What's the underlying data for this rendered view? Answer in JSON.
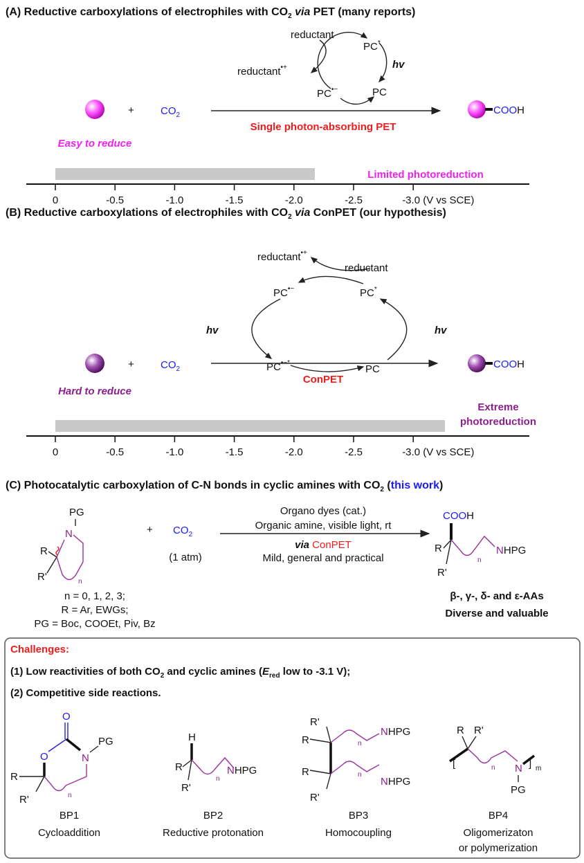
{
  "colors": {
    "magenta": "#ee22ee",
    "purple": "#8b1f8b",
    "red": "#ee1c1c",
    "blue": "#1a1aff",
    "bar": "#c8c8c8"
  },
  "panelA": {
    "title_pre": "(A) Reductive carboxylations of electrophiles with CO",
    "title_sub": "2",
    "title_via": "via",
    "title_post": " PET (many reports)",
    "cycle": {
      "reductant": "reductant",
      "reductant_ox": "reductant",
      "reductant_ox_sup": "•+",
      "pc_star": "PC",
      "pc_star_sup": "*",
      "hv": "hv",
      "pc_rad": "PC",
      "pc_rad_sup": "•−",
      "pc": "PC"
    },
    "plus": "+",
    "co2": "CO",
    "co2_sub": "2",
    "arrow_label": "Single photon-absorbing PET",
    "substrate_label": "Easy to reduce",
    "product_cooh": "COO",
    "product_h": "H",
    "bar_label": "Limited photoreduction",
    "bar_fraction_of_axis": 0.64,
    "axis_ticks": [
      "0",
      "-0.5",
      "-1.0",
      "-1.5",
      "-2.0",
      "-2.5",
      "-3.0 (V vs SCE)"
    ],
    "bar_end_potential": -2.2
  },
  "panelB": {
    "title_pre": "(B) Reductive carboxylations of electrophiles with CO",
    "title_sub": "2",
    "title_via": "via",
    "title_post": " ConPET (our hypothesis)",
    "cycle": {
      "reductant_ox": "reductant",
      "reductant_ox_sup": "•+",
      "reductant": "reductant",
      "pc_rad": "PC",
      "pc_rad_sup": "•−",
      "pc_star": "PC",
      "pc_star_sup": "*",
      "hv_left": "hv",
      "hv_right": "hv",
      "pc_rad_star": "PC",
      "pc_rad_star_sup": "•−*",
      "pc": "PC"
    },
    "plus": "+",
    "co2": "CO",
    "co2_sub": "2",
    "arrow_label": "ConPET",
    "substrate_label": "Hard to reduce",
    "product_cooh": "COO",
    "product_h": "H",
    "bar_label_1": "Extreme",
    "bar_label_2": "photoreduction",
    "axis_ticks": [
      "0",
      "-0.5",
      "-1.0",
      "-1.5",
      "-2.0",
      "-2.5",
      "-3.0 (V vs SCE)"
    ],
    "bar_end_potential": -3.3
  },
  "panelC": {
    "title_pre": "(C) Photocatalytic carboxylation of C-N bonds in cyclic amines with CO",
    "title_sub": "2",
    "title_paren_open": " (",
    "title_highlight": "this work",
    "title_paren_close": ")",
    "sm": {
      "pg": "PG",
      "n_atom": "N",
      "r": "R",
      "r_prime": "R'",
      "n_sub": "n"
    },
    "sm_notes": [
      "n = 0, 1, 2, 3;",
      "R = Ar, EWGs;",
      "PG = Boc, COOEt, Piv, Bz"
    ],
    "plus": "+",
    "co2": "CO",
    "co2_sub": "2",
    "co2_pressure": "(1 atm)",
    "conditions": [
      "Organo dyes (cat.)",
      "Organic amine, visible light, rt"
    ],
    "via": "via",
    "conpet": "ConPET",
    "conditions_below": "Mild, general and practical",
    "product": {
      "cooh": "COO",
      "h": "H",
      "r": "R",
      "r_prime": "R'",
      "n_sub": "n",
      "nh": "N",
      "hpg": "HPG"
    },
    "product_notes": [
      "β-, γ-,  δ- and ε-AAs",
      "Diverse and valuable"
    ]
  },
  "challenges": {
    "heading": "Challenges:",
    "item1_pre": "(1) Low reactivities of both CO",
    "item1_sub": "2",
    "item1_mid": " and cyclic amines (",
    "item1_e": "E",
    "item1_esub": "red",
    "item1_post": " low to -3.1 V);",
    "item2": "(2) Competitive side reactions.",
    "byproducts": [
      {
        "id": "BP1",
        "name": "Cycloaddition",
        "atoms": {
          "o_top": "O",
          "o_ring": "O",
          "n": "N",
          "pg": "PG",
          "r": "R",
          "r_prime": "R'",
          "n_sub": "n"
        }
      },
      {
        "id": "BP2",
        "name": "Reductive protonation",
        "atoms": {
          "h": "H",
          "r": "R",
          "r_prime": "R'",
          "n_sub": "n",
          "nh": "N",
          "hpg": "HPG"
        }
      },
      {
        "id": "BP3",
        "name": "Homocoupling",
        "atoms": {
          "r_prime": "R'",
          "r": "R",
          "n_sub": "n",
          "nh": "N",
          "hpg": "HPG"
        }
      },
      {
        "id": "BP4",
        "name": "Oligomerizaton",
        "name2": "or polymerization",
        "atoms": {
          "r": "R",
          "r_prime": "R'",
          "n_sub": "n",
          "n": "N",
          "pg": "PG",
          "m": "m"
        }
      }
    ]
  }
}
